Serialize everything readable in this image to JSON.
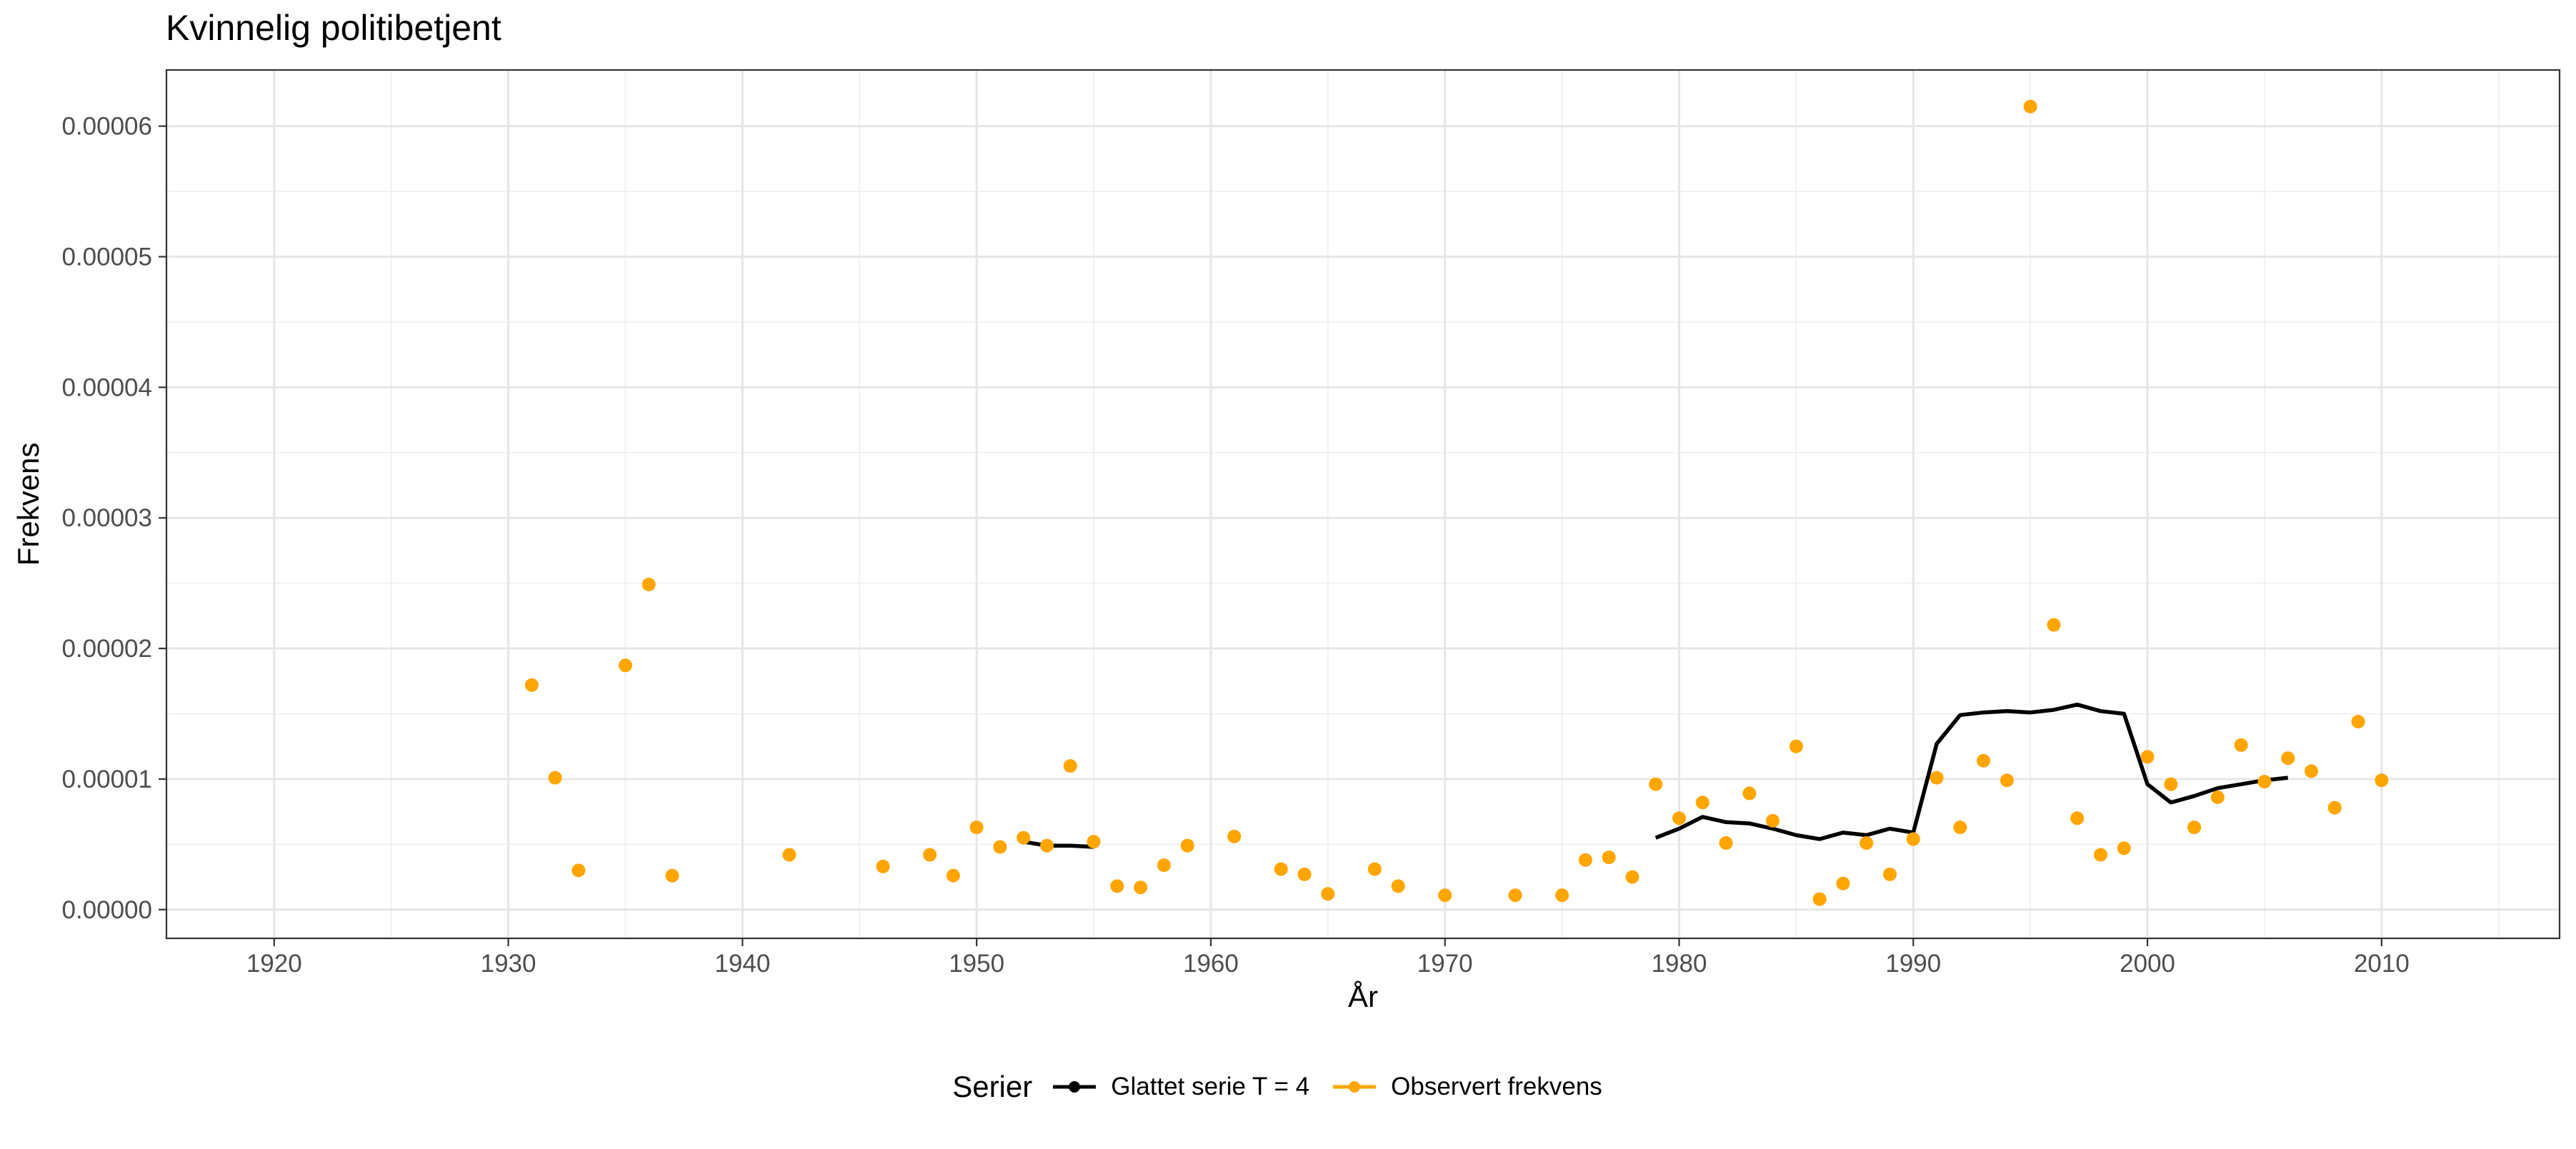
{
  "chart_data": {
    "type": "line",
    "title": "Kvinnelig politibetjent",
    "xlabel": "År",
    "ylabel": "Frekvens",
    "xlim": [
      1915.4,
      2017.6
    ],
    "ylim": [
      -2.2e-06,
      6.43e-05
    ],
    "x_ticks": [
      1920,
      1930,
      1940,
      1950,
      1960,
      1970,
      1980,
      1990,
      2000,
      2010
    ],
    "x_tick_labels": [
      "1920",
      "1930",
      "1940",
      "1950",
      "1960",
      "1970",
      "1980",
      "1990",
      "2000",
      "2010"
    ],
    "y_ticks": [
      0,
      1e-05,
      2e-05,
      3e-05,
      4e-05,
      5e-05,
      6e-05
    ],
    "y_tick_labels": [
      "0.00000",
      "0.00001",
      "0.00002",
      "0.00003",
      "0.00004",
      "0.00005",
      "0.00006"
    ],
    "grid": true,
    "legend_title": "Serier",
    "legend_position": "bottom",
    "series": [
      {
        "name": "Glattet serie T  = 4",
        "kind": "line",
        "color": "#000000",
        "segments": [
          {
            "x": [
              1952,
              1953,
              1954,
              1955
            ],
            "y": [
              5.2e-06,
              4.9e-06,
              4.9e-06,
              4.8e-06
            ]
          },
          {
            "x": [
              1979,
              1980,
              1981,
              1982,
              1983,
              1984,
              1985,
              1986,
              1987,
              1988,
              1989,
              1990,
              1991,
              1992,
              1993,
              1994,
              1995,
              1996,
              1997,
              1998,
              1999,
              2000,
              2001,
              2002,
              2003,
              2004,
              2005,
              2006
            ],
            "y": [
              5.5e-06,
              6.2e-06,
              7.1e-06,
              6.7e-06,
              6.6e-06,
              6.2e-06,
              5.7e-06,
              5.4e-06,
              5.9e-06,
              5.7e-06,
              6.2e-06,
              5.9e-06,
              1.27e-05,
              1.49e-05,
              1.51e-05,
              1.52e-05,
              1.51e-05,
              1.53e-05,
              1.57e-05,
              1.52e-05,
              1.5e-05,
              9.6e-06,
              8.2e-06,
              8.7e-06,
              9.3e-06,
              9.6e-06,
              9.9e-06,
              1.01e-05
            ]
          }
        ]
      },
      {
        "name": "Observert frekvens",
        "kind": "scatter",
        "color": "#FFA500",
        "x": [
          1931,
          1932,
          1933,
          1935,
          1936,
          1937,
          1942,
          1946,
          1948,
          1949,
          1950,
          1951,
          1952,
          1953,
          1954,
          1955,
          1956,
          1957,
          1958,
          1959,
          1961,
          1963,
          1964,
          1965,
          1967,
          1968,
          1970,
          1973,
          1975,
          1976,
          1977,
          1978,
          1979,
          1980,
          1981,
          1982,
          1983,
          1984,
          1985,
          1986,
          1987,
          1988,
          1989,
          1990,
          1991,
          1992,
          1993,
          1994,
          1995,
          1996,
          1997,
          1998,
          1999,
          2000,
          2001,
          2002,
          2003,
          2004,
          2005,
          2006,
          2007,
          2008,
          2009,
          2010
        ],
        "y": [
          1.72e-05,
          1.01e-05,
          3e-06,
          1.87e-05,
          2.49e-05,
          2.6e-06,
          4.2e-06,
          3.3e-06,
          4.2e-06,
          2.6e-06,
          6.3e-06,
          4.8e-06,
          5.5e-06,
          4.9e-06,
          1.1e-05,
          5.2e-06,
          1.8e-06,
          1.7e-06,
          3.4e-06,
          4.9e-06,
          5.6e-06,
          3.1e-06,
          2.7e-06,
          1.2e-06,
          3.1e-06,
          1.8e-06,
          1.1e-06,
          1.1e-06,
          1.1e-06,
          3.8e-06,
          4e-06,
          2.5e-06,
          9.6e-06,
          7e-06,
          8.2e-06,
          5.1e-06,
          8.9e-06,
          6.8e-06,
          1.25e-05,
          8e-07,
          2e-06,
          5.1e-06,
          2.7e-06,
          5.4e-06,
          1.01e-05,
          6.3e-06,
          1.14e-05,
          9.9e-06,
          6.15e-05,
          2.18e-05,
          7e-06,
          4.2e-06,
          4.7e-06,
          1.17e-05,
          9.6e-06,
          6.3e-06,
          8.6e-06,
          1.26e-05,
          9.8e-06,
          1.16e-05,
          1.06e-05,
          7.8e-06,
          1.44e-05,
          9.9e-06
        ]
      }
    ]
  }
}
